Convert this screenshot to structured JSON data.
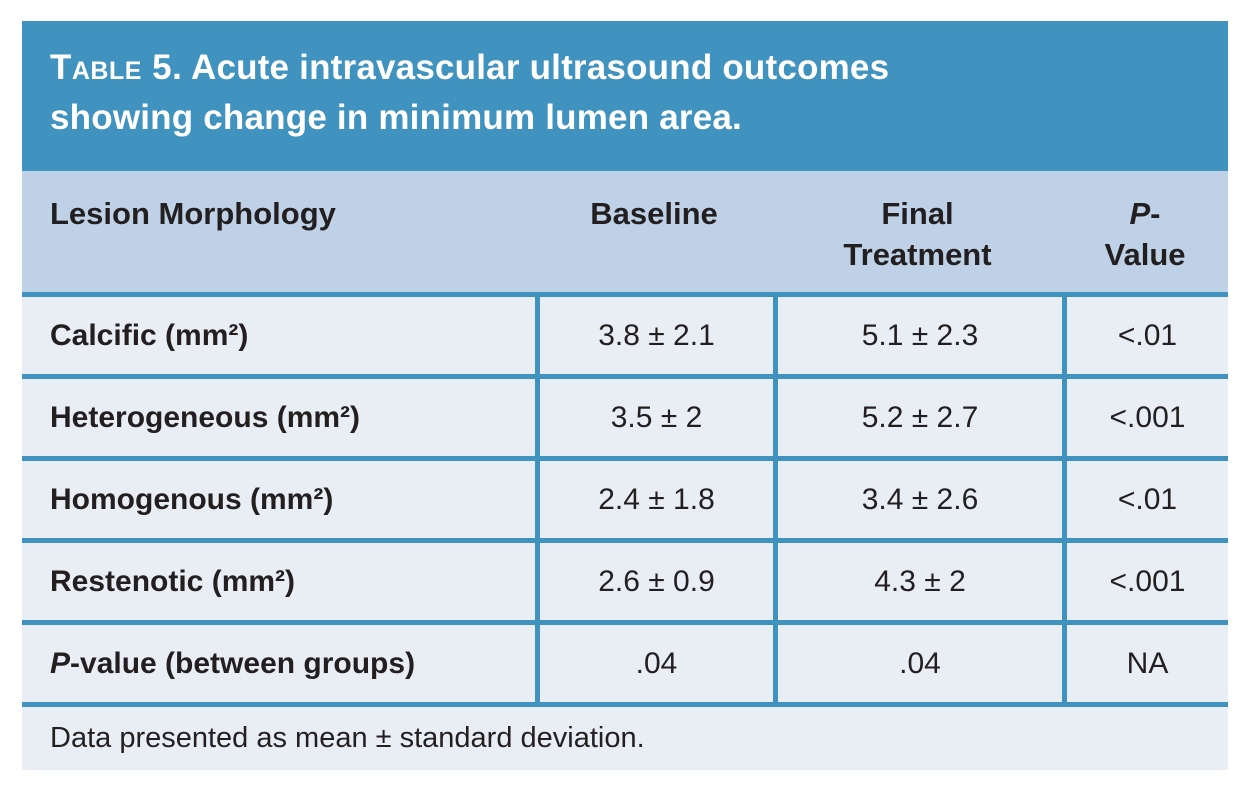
{
  "colors": {
    "accent_blue": "#4092bf",
    "header_bg": "#bed1e6",
    "row_bg": "#e9eef4",
    "text": "#231f20",
    "title_text": "#ffffff"
  },
  "title": {
    "label_smallcaps": "Table 5.",
    "line1_rest": " Acute intravascular ultrasound outcomes",
    "line2": "showing change in minimum lumen area."
  },
  "headers": [
    {
      "italic": "",
      "line1": "Lesion Morphology",
      "line2": ""
    },
    {
      "italic": "",
      "line1": "Baseline",
      "line2": ""
    },
    {
      "italic": "",
      "line1": "Final",
      "line2": "Treatment"
    },
    {
      "italic": "P",
      "line1": "-",
      "line2": "Value"
    }
  ],
  "rows": [
    {
      "label_italic": "",
      "label": "Calcific (mm²)",
      "baseline": "3.8 ± 2.1",
      "final_treatment": "5.1 ± 2.3",
      "p_value": "<.01"
    },
    {
      "label_italic": "",
      "label": "Heterogeneous (mm²)",
      "baseline": "3.5 ± 2",
      "final_treatment": "5.2 ± 2.7",
      "p_value": "<.001"
    },
    {
      "label_italic": "",
      "label": "Homogenous (mm²)",
      "baseline": "2.4 ± 1.8",
      "final_treatment": "3.4 ± 2.6",
      "p_value": "<.01"
    },
    {
      "label_italic": "",
      "label": "Restenotic (mm²)",
      "baseline": "2.6 ± 0.9",
      "final_treatment": "4.3 ± 2",
      "p_value": "<.001"
    },
    {
      "label_italic": "P",
      "label": "-value (between groups)",
      "baseline": ".04",
      "final_treatment": ".04",
      "p_value": "NA"
    }
  ],
  "footnote": "Data presented as mean ± standard deviation."
}
